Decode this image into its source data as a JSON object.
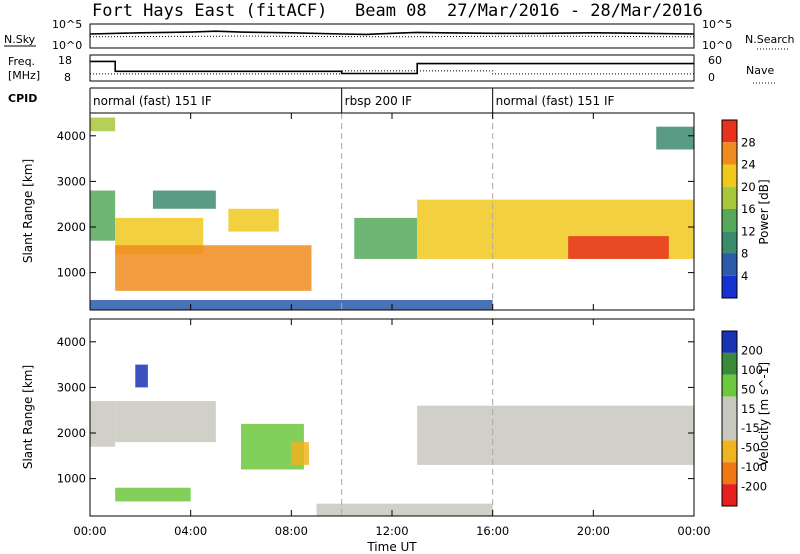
{
  "title": {
    "radar": "Fort Hays East (fitACF)",
    "beam": "Beam 08",
    "dates": "27/Mar/2016 - 28/Mar/2016"
  },
  "top_panels": {
    "nsky_label": "N.Sky",
    "nsearch_label": "N.Search",
    "noise_ticks": [
      "10^5",
      "10^0"
    ],
    "freq_label_line1": "Freq.",
    "freq_label_line2": "[MHz]",
    "freq_ticks": [
      "18",
      "8"
    ],
    "nave_label": "Nave",
    "nave_ticks": [
      "60",
      "0"
    ],
    "cpid_label": "CPID",
    "modes": [
      {
        "label": "normal (fast) 151 IF",
        "start_hr": 0,
        "end_hr": 10
      },
      {
        "label": "rbsp 200 IF",
        "start_hr": 10,
        "end_hr": 16
      },
      {
        "label": "normal (fast) 151 IF",
        "start_hr": 16,
        "end_hr": 24
      }
    ]
  },
  "time_axis": {
    "label": "Time UT",
    "ticks": [
      "00:00",
      "04:00",
      "08:00",
      "12:00",
      "16:00",
      "20:00",
      "00:00"
    ]
  },
  "power_panel": {
    "ylabel": "Slant Range [km]",
    "yticks": [
      "1000",
      "2000",
      "3000",
      "4000"
    ],
    "colorbar_label": "Power [dB]",
    "colorbar_ticks": [
      "4",
      "8",
      "12",
      "16",
      "20",
      "24",
      "28"
    ]
  },
  "velocity_panel": {
    "ylabel": "Slant Range [km]",
    "yticks": [
      "1000",
      "2000",
      "3000",
      "4000"
    ],
    "colorbar_label": "Velocity [m s^-1]",
    "colorbar_ticks": [
      "200",
      "100",
      "50",
      "15",
      "-15",
      "-50",
      "-100",
      "-200"
    ]
  },
  "chart_data": [
    {
      "type": "line",
      "title": "",
      "xlabel": "",
      "ylabel": "N.Sky",
      "xlim": [
        0,
        24
      ],
      "series": [
        {
          "name": "N.Sky",
          "style": "solid",
          "x": [
            0,
            2,
            4,
            5,
            6,
            8,
            10,
            11,
            12,
            13,
            14,
            16,
            18,
            20,
            22,
            24
          ],
          "values": [
            1000,
            2000,
            3000,
            5000,
            3000,
            2000,
            1000,
            800,
            1500,
            2500,
            2000,
            1500,
            1500,
            2000,
            1500,
            1000
          ]
        },
        {
          "name": "N.Search",
          "style": "dotted",
          "x": [
            0,
            6,
            12,
            18,
            24
          ],
          "values": [
            200,
            300,
            200,
            300,
            200
          ]
        }
      ]
    },
    {
      "type": "line",
      "title": "",
      "xlabel": "",
      "ylabel": "Freq. [MHz]",
      "xlim": [
        0,
        24
      ],
      "ylim": [
        8,
        18
      ],
      "series": [
        {
          "name": "Freq.",
          "style": "solid",
          "x": [
            0,
            1,
            1,
            10,
            10,
            13,
            13,
            24
          ],
          "values": [
            16,
            16,
            11.5,
            11.5,
            10.5,
            10.5,
            15,
            15
          ]
        },
        {
          "name": "Nave",
          "style": "dotted",
          "x": [
            0,
            10,
            10,
            16,
            16,
            24
          ],
          "values": [
            14,
            14,
            22,
            22,
            14,
            14
          ]
        }
      ]
    },
    {
      "type": "heatmap",
      "title": "",
      "xlabel": "Time UT",
      "ylabel": "Slant Range [km]",
      "value_label": "Power [dB]",
      "xlim": [
        0,
        24
      ],
      "ylim": [
        180,
        4500
      ],
      "colorbar": {
        "ticks": [
          4,
          8,
          12,
          16,
          20,
          24,
          28
        ],
        "range": [
          0,
          30
        ]
      },
      "regions": [
        {
          "t0": 0.0,
          "t1": 1.0,
          "r0": 1700,
          "r1": 2800,
          "power": 12
        },
        {
          "t0": 0.0,
          "t1": 1.0,
          "r0": 4100,
          "r1": 4400,
          "power": 16
        },
        {
          "t0": 1.0,
          "t1": 4.5,
          "r0": 1400,
          "r1": 2200,
          "power": 22
        },
        {
          "t0": 2.5,
          "t1": 5.0,
          "r0": 2400,
          "r1": 2800,
          "power": 10
        },
        {
          "t0": 1.0,
          "t1": 8.8,
          "r0": 600,
          "r1": 1600,
          "power": 24
        },
        {
          "t0": 5.5,
          "t1": 7.5,
          "r0": 1900,
          "r1": 2400,
          "power": 22
        },
        {
          "t0": 10.5,
          "t1": 13.0,
          "r0": 1300,
          "r1": 2200,
          "power": 12
        },
        {
          "t0": 13.0,
          "t1": 24.0,
          "r0": 1300,
          "r1": 2600,
          "power": 20
        },
        {
          "t0": 19.0,
          "t1": 23.0,
          "r0": 1300,
          "r1": 1800,
          "power": 28
        },
        {
          "t0": 22.5,
          "t1": 24.0,
          "r0": 3700,
          "r1": 4200,
          "power": 10
        },
        {
          "t0": 0.0,
          "t1": 16.0,
          "r0": 180,
          "r1": 400,
          "power": 6
        }
      ]
    },
    {
      "type": "heatmap",
      "title": "",
      "xlabel": "Time UT",
      "ylabel": "Slant Range [km]",
      "value_label": "Velocity [m s^-1]",
      "xlim": [
        0,
        24
      ],
      "ylim": [
        180,
        4500
      ],
      "colorbar": {
        "ticks": [
          200,
          100,
          50,
          15,
          -15,
          -50,
          -100,
          -200
        ],
        "range": [
          -250,
          250
        ]
      },
      "regions": [
        {
          "t0": 0.0,
          "t1": 1.0,
          "r0": 1700,
          "r1": 2700,
          "velocity": 0
        },
        {
          "t0": 1.0,
          "t1": 5.0,
          "r0": 1800,
          "r1": 2700,
          "velocity": 0
        },
        {
          "t0": 1.0,
          "t1": 4.0,
          "r0": 500,
          "r1": 800,
          "velocity": 60
        },
        {
          "t0": 6.0,
          "t1": 8.5,
          "r0": 1200,
          "r1": 2200,
          "velocity": 60
        },
        {
          "t0": 8.0,
          "t1": 8.7,
          "r0": 1300,
          "r1": 1800,
          "velocity": -50
        },
        {
          "t0": 13.0,
          "t1": 24.0,
          "r0": 1300,
          "r1": 2600,
          "velocity": 0
        },
        {
          "t0": 9.0,
          "t1": 16.0,
          "r0": 180,
          "r1": 450,
          "velocity": -30
        },
        {
          "t0": 1.8,
          "t1": 2.3,
          "r0": 3000,
          "r1": 3500,
          "velocity": 200
        }
      ]
    }
  ]
}
